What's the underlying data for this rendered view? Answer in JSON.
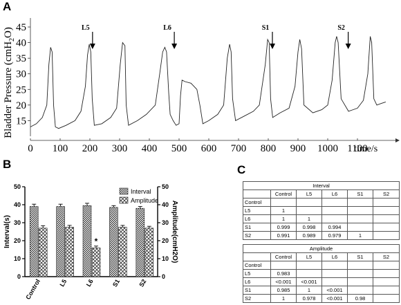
{
  "panels": {
    "a": "A",
    "b": "B",
    "c": "C"
  },
  "chart_data": [
    {
      "type": "line",
      "ylabel": "Bladder Pressure (cmH2O)",
      "ylabel_parts": [
        "Bladder Pressure (cmH",
        "2",
        "O)"
      ],
      "xlabel": "time/s",
      "xlim": [
        0,
        1200
      ],
      "ylim": [
        10,
        47
      ],
      "xticks": [
        0,
        100,
        200,
        300,
        400,
        500,
        600,
        700,
        800,
        900,
        1000,
        1100
      ],
      "yticks": [
        15,
        20,
        25,
        30,
        35,
        40,
        45
      ],
      "markers": [
        {
          "label": "L5",
          "x": 195
        },
        {
          "label": "L6",
          "x": 470
        },
        {
          "label": "S1",
          "x": 800
        },
        {
          "label": "S2",
          "x": 1055
        }
      ],
      "series": [
        {
          "x": [
            0,
            20,
            40,
            55,
            62,
            68,
            73,
            78,
            84,
            95,
            120,
            150,
            170,
            185,
            192,
            198,
            203,
            208,
            215,
            240,
            270,
            290,
            302,
            310,
            318,
            322,
            330,
            360,
            390,
            420,
            435,
            445,
            452,
            458,
            465,
            470,
            480,
            490,
            500,
            505,
            510,
            520,
            540,
            560,
            570,
            580,
            600,
            630,
            650,
            662,
            670,
            675,
            680,
            690,
            720,
            750,
            770,
            790,
            798,
            803,
            808,
            815,
            840,
            870,
            890,
            900,
            906,
            912,
            920,
            950,
            980,
            1000,
            1015,
            1025,
            1030,
            1035,
            1045,
            1070,
            1100,
            1120,
            1135,
            1143,
            1148,
            1155,
            1165,
            1180,
            1195
          ],
          "y": [
            13,
            14,
            16,
            20,
            33,
            38.5,
            37,
            20,
            13,
            12.5,
            13.5,
            15,
            18,
            26,
            36,
            39.5,
            37,
            22,
            13.5,
            14,
            16,
            19,
            33,
            40,
            39,
            20,
            13.5,
            15,
            17,
            20,
            30,
            37,
            38.5,
            37,
            24,
            17,
            15,
            13.5,
            14,
            23,
            28,
            27.5,
            27,
            25,
            20,
            14,
            15,
            17,
            20,
            35,
            39.5,
            37,
            22,
            15,
            16.5,
            18,
            20,
            33,
            41,
            40,
            22,
            16,
            17.5,
            19,
            26,
            37,
            41,
            38,
            20,
            17.5,
            18.5,
            20,
            28,
            40,
            42,
            40,
            22,
            18,
            19,
            21.5,
            30,
            42,
            40,
            22,
            20,
            20.5,
            21
          ]
        }
      ]
    },
    {
      "type": "bar",
      "categories": [
        "Control",
        "L5",
        "L6",
        "S1",
        "S2"
      ],
      "ylabel": "Interval(s)",
      "y2label": "Amplitude(cmH2O)",
      "ylim": [
        0,
        50
      ],
      "y2lim": [
        0,
        50
      ],
      "yticks": [
        0,
        10,
        20,
        30,
        40,
        50
      ],
      "legend_position": "top-right",
      "series": [
        {
          "name": "Interval",
          "values": [
            39,
            39,
            39.5,
            38.5,
            38
          ],
          "errors": [
            1.3,
            1.3,
            1.3,
            1,
            1
          ]
        },
        {
          "name": "Amplitude",
          "values": [
            27,
            27.5,
            16,
            27.5,
            27
          ],
          "errors": [
            1.3,
            1,
            1,
            1,
            1
          ]
        }
      ],
      "annotations": [
        {
          "category": "L6",
          "series": "Amplitude",
          "text": "*"
        }
      ]
    }
  ],
  "tables": {
    "columns": [
      "",
      "Control",
      "L5",
      "L6",
      "S1",
      "S2"
    ],
    "interval": {
      "title": "Interval",
      "rows": [
        [
          "Control",
          "",
          "",
          "",
          "",
          ""
        ],
        [
          "L5",
          "1",
          "",
          "",
          "",
          ""
        ],
        [
          "L6",
          "1",
          "1",
          "",
          "",
          ""
        ],
        [
          "S1",
          "0.999",
          "0.998",
          "0.994",
          "",
          ""
        ],
        [
          "S2",
          "0.991",
          "0.989",
          "0.979",
          "1",
          ""
        ]
      ]
    },
    "amplitude": {
      "title": "Amplitude",
      "rows": [
        [
          "Control",
          "",
          "",
          "",
          "",
          ""
        ],
        [
          "L5",
          "0.983",
          "",
          "",
          "",
          ""
        ],
        [
          "L6",
          "<0.001",
          "<0.001",
          "",
          "",
          ""
        ],
        [
          "S1",
          "0.985",
          "1",
          "<0.001",
          "",
          ""
        ],
        [
          "S2",
          "1",
          "0.978",
          "<0.001",
          "0.98",
          ""
        ]
      ]
    }
  }
}
